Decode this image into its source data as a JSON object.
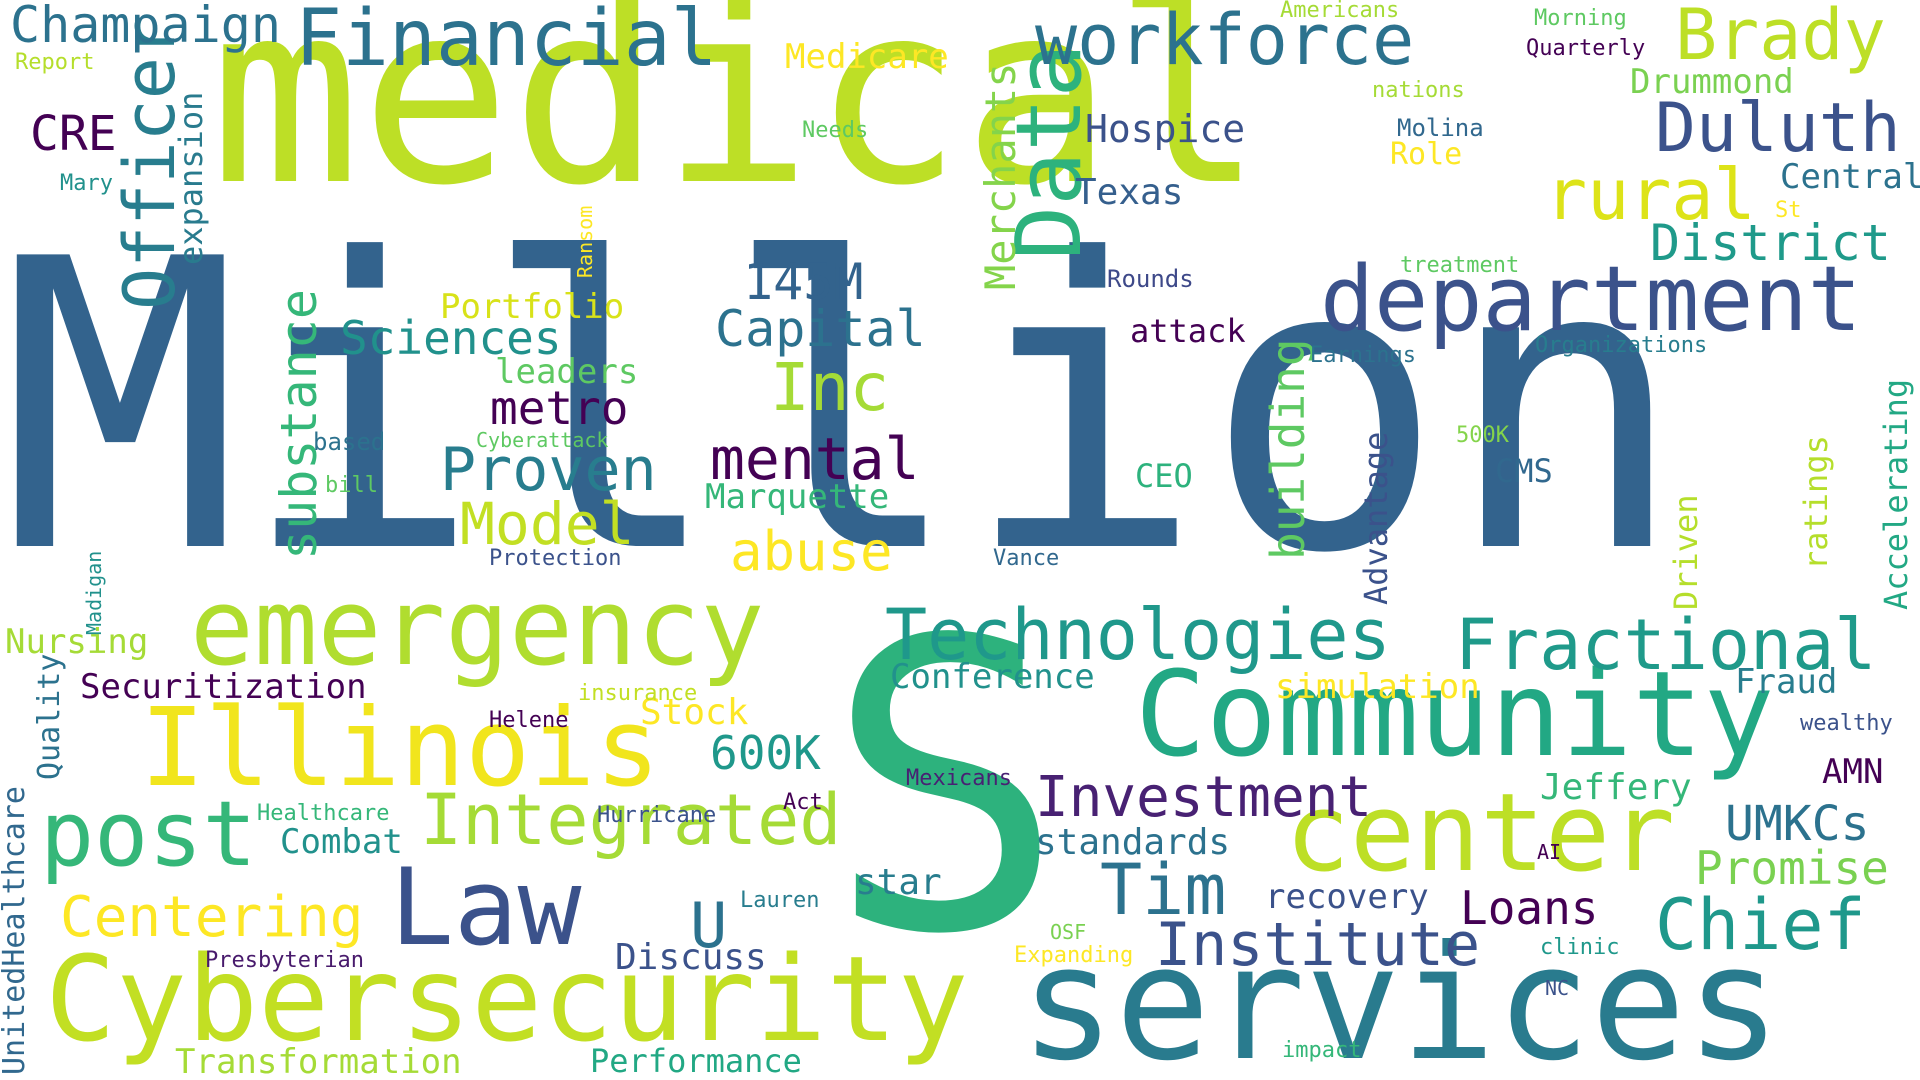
{
  "cloud": {
    "background": "#ffffff",
    "words": [
      {
        "text": "Million",
        "color": "#33638d"
      },
      {
        "text": "medical",
        "color": "#bddf26"
      },
      {
        "text": "S",
        "color": "#2db27d"
      },
      {
        "text": "services",
        "color": "#297b8e"
      },
      {
        "text": "Community",
        "color": "#22a884"
      },
      {
        "text": "Cybersecurity",
        "color": "#c2df23"
      },
      {
        "text": "emergency",
        "color": "#b0dd2f"
      },
      {
        "text": "center",
        "color": "#bddf26"
      },
      {
        "text": "department",
        "color": "#3b528b"
      },
      {
        "text": "Illinois",
        "color": "#f1e51d"
      },
      {
        "text": "Data",
        "color": "#2db27d"
      },
      {
        "text": "post",
        "color": "#35b779"
      },
      {
        "text": "Law",
        "color": "#3b528b"
      },
      {
        "text": "Integrated",
        "color": "#a5db36"
      },
      {
        "text": "Technologies",
        "color": "#1f988b"
      },
      {
        "text": "Fractional",
        "color": "#1f9a8a"
      },
      {
        "text": "Financial",
        "color": "#2c728e"
      },
      {
        "text": "workforce",
        "color": "#2c728e"
      },
      {
        "text": "Brady",
        "color": "#bddf26"
      },
      {
        "text": "Duluth",
        "color": "#3b528b"
      },
      {
        "text": "rural",
        "color": "#dde318"
      },
      {
        "text": "Officer",
        "color": "#287d8e"
      },
      {
        "text": "Chief",
        "color": "#1f988b"
      },
      {
        "text": "Institute",
        "color": "#3b528b"
      },
      {
        "text": "Tim",
        "color": "#2c728e"
      },
      {
        "text": "Champaign",
        "color": "#2c728e"
      },
      {
        "text": "District",
        "color": "#1f9a8a"
      },
      {
        "text": "Capital",
        "color": "#2c728e"
      },
      {
        "text": "Centering",
        "color": "#fde725"
      },
      {
        "text": "Investment",
        "color": "#482173"
      },
      {
        "text": "Inc",
        "color": "#a5db36"
      },
      {
        "text": "mental",
        "color": "#440154"
      },
      {
        "text": "Proven",
        "color": "#287d8e"
      },
      {
        "text": "Model",
        "color": "#c2df23"
      },
      {
        "text": "abuse",
        "color": "#fde725"
      },
      {
        "text": "substance",
        "color": "#35b779"
      },
      {
        "text": "building",
        "color": "#5ec962"
      },
      {
        "text": "Merchants",
        "color": "#84d44b"
      },
      {
        "text": "Sciences",
        "color": "#21918c"
      },
      {
        "text": "UMKCs",
        "color": "#2c728e"
      },
      {
        "text": "Promise",
        "color": "#7ad151"
      },
      {
        "text": "Loans",
        "color": "#440154"
      },
      {
        "text": "U",
        "color": "#2c728e"
      },
      {
        "text": "145M",
        "color": "#33638d"
      },
      {
        "text": "600K",
        "color": "#1f988b"
      },
      {
        "text": "metro",
        "color": "#440154"
      },
      {
        "text": "Hospice",
        "color": "#3b528b"
      },
      {
        "text": "Texas",
        "color": "#355f8d"
      },
      {
        "text": "Medicare",
        "color": "#fde725"
      },
      {
        "text": "Drummond",
        "color": "#7ad151"
      },
      {
        "text": "Central",
        "color": "#2c728e"
      },
      {
        "text": "CRE",
        "color": "#440154"
      },
      {
        "text": "expansion",
        "color": "#297b8e"
      },
      {
        "text": "Portfolio",
        "color": "#d8e219"
      },
      {
        "text": "leaders",
        "color": "#5ec962"
      },
      {
        "text": "Marquette",
        "color": "#35b779"
      },
      {
        "text": "Conference",
        "color": "#21918c"
      },
      {
        "text": "Securitization",
        "color": "#440154"
      },
      {
        "text": "Nursing",
        "color": "#a5db36"
      },
      {
        "text": "Quality",
        "color": "#2c728e"
      },
      {
        "text": "UnitedHealthcare",
        "color": "#31688e"
      },
      {
        "text": "Transformation",
        "color": "#a5db36"
      },
      {
        "text": "Performance",
        "color": "#22a884"
      },
      {
        "text": "Discuss",
        "color": "#3b528b"
      },
      {
        "text": "standards",
        "color": "#2c728e"
      },
      {
        "text": "star",
        "color": "#287d8e"
      },
      {
        "text": "recovery",
        "color": "#3b528b"
      },
      {
        "text": "Combat",
        "color": "#21918c"
      },
      {
        "text": "Jeffery",
        "color": "#35b779"
      },
      {
        "text": "simulation",
        "color": "#fde725"
      },
      {
        "text": "Stock",
        "color": "#fde725"
      },
      {
        "text": "Fraud",
        "color": "#287d8e"
      },
      {
        "text": "AMN",
        "color": "#440154"
      },
      {
        "text": "Advantage",
        "color": "#3b528b"
      },
      {
        "text": "Driven",
        "color": "#b5de2b"
      },
      {
        "text": "ratings",
        "color": "#b5de2b"
      },
      {
        "text": "Accelerating",
        "color": "#22a884"
      },
      {
        "text": "CMS",
        "color": "#31688e"
      },
      {
        "text": "CEO",
        "color": "#2db27d"
      },
      {
        "text": "attack",
        "color": "#440154"
      },
      {
        "text": "Rounds",
        "color": "#3e4989"
      },
      {
        "text": "Earnings",
        "color": "#2c728e"
      },
      {
        "text": "Organizations",
        "color": "#287d8e"
      },
      {
        "text": "treatment",
        "color": "#5ec962"
      },
      {
        "text": "St",
        "color": "#fde725"
      },
      {
        "text": "Role",
        "color": "#fde725"
      },
      {
        "text": "Molina",
        "color": "#31688e"
      },
      {
        "text": "nations",
        "color": "#a5db36"
      },
      {
        "text": "Americans",
        "color": "#a5db36"
      },
      {
        "text": "Morning",
        "color": "#5ec962"
      },
      {
        "text": "Quarterly",
        "color": "#440154"
      },
      {
        "text": "Needs",
        "color": "#5ec962"
      },
      {
        "text": "Report",
        "color": "#b5de2b"
      },
      {
        "text": "Mary",
        "color": "#21918c"
      },
      {
        "text": "Ransom",
        "color": "#fde725"
      },
      {
        "text": "based",
        "color": "#2c728e"
      },
      {
        "text": "bill",
        "color": "#5ec962"
      },
      {
        "text": "Cyberattack",
        "color": "#5ec962"
      },
      {
        "text": "Protection",
        "color": "#3b528b"
      },
      {
        "text": "Vance",
        "color": "#31688e"
      },
      {
        "text": "500K",
        "color": "#84d44b"
      },
      {
        "text": "Madigan",
        "color": "#21918c"
      },
      {
        "text": "insurance",
        "color": "#c2df23"
      },
      {
        "text": "Helene",
        "color": "#440154"
      },
      {
        "text": "Healthcare",
        "color": "#35b779"
      },
      {
        "text": "Hurricane",
        "color": "#3b528b"
      },
      {
        "text": "Act",
        "color": "#440154"
      },
      {
        "text": "Mexicans",
        "color": "#482173"
      },
      {
        "text": "Lauren",
        "color": "#287d8e"
      },
      {
        "text": "Presbyterian",
        "color": "#481a6c"
      },
      {
        "text": "OSF",
        "color": "#7ad151"
      },
      {
        "text": "Expanding",
        "color": "#fde725"
      },
      {
        "text": "clinic",
        "color": "#1f988b"
      },
      {
        "text": "NC",
        "color": "#3b528b"
      },
      {
        "text": "AI",
        "color": "#440154"
      },
      {
        "text": "wealthy",
        "color": "#3b528b"
      },
      {
        "text": "impact",
        "color": "#35b779"
      }
    ]
  }
}
